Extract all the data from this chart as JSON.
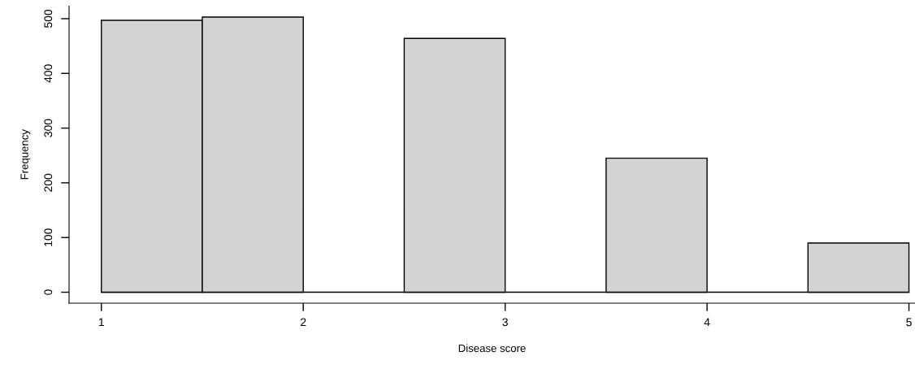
{
  "chart_data": {
    "type": "histogram",
    "xlabel": "Disease score",
    "ylabel": "Frequency",
    "bins": [
      1,
      1.5,
      2,
      2.5,
      3,
      3.5,
      4,
      4.5,
      5
    ],
    "values": [
      497,
      503,
      0,
      464,
      0,
      245,
      0,
      90
    ],
    "color": "#d3d3d3",
    "xlim": [
      0.84,
      5.03
    ],
    "ylim": [
      -20,
      523
    ],
    "xticks": [
      1,
      2,
      3,
      4,
      5
    ],
    "yticks": [
      0,
      100,
      200,
      300,
      400,
      500
    ]
  }
}
